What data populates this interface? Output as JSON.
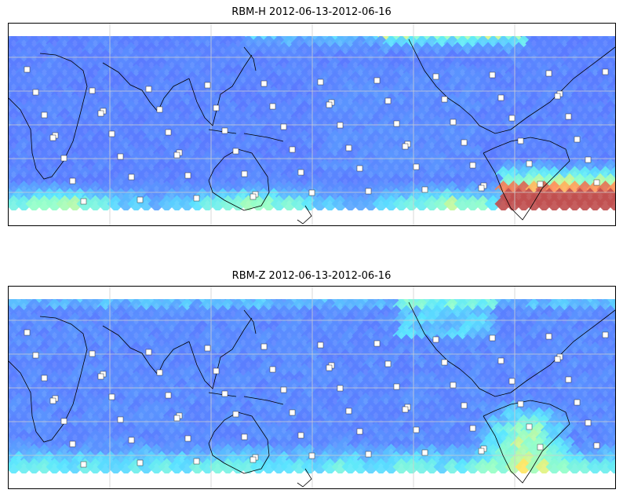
{
  "panels": [
    {
      "title": "RBM-H 2012-06-13-2012-06-16",
      "field": "rbm-h",
      "colormap": "jet"
    },
    {
      "title": "RBM-Z 2012-06-13-2012-06-16",
      "field": "rbm-z",
      "colormap": "jet"
    }
  ],
  "colors": {
    "low": "#5a5aff",
    "mid": "#5ae6ff",
    "high": "#ffee66",
    "max": "#c05050",
    "coast": "#000000",
    "grid": "#cfcfcf"
  }
}
